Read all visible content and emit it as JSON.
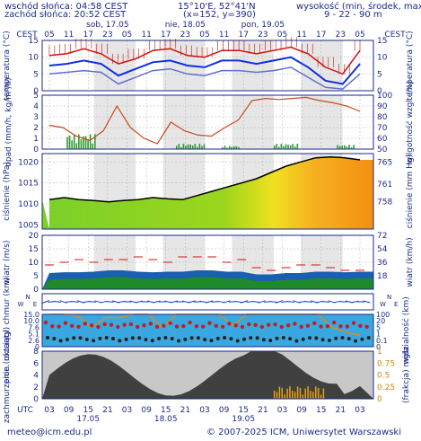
{
  "header": {
    "sunrise": "wschód słońca: 04:58 CEST",
    "sunset": "zachód słońca: 20:52 CEST",
    "coords": "15°10'E, 52°41'N",
    "grid": "(x=152, y=390)",
    "height_label": "wysokość (min, środek, max)",
    "height_values": "9 - 22 - 90 m"
  },
  "timeline": {
    "tz_left": "CEST",
    "tz_right": "CEST",
    "tz_bottom": "UTC",
    "top_hours": [
      "05",
      "11",
      "17",
      "23",
      "05",
      "11",
      "17",
      "23",
      "05",
      "11",
      "17",
      "23",
      "05",
      "11",
      "17",
      "23",
      "05"
    ],
    "top_days": [
      "sob, 17.05",
      "nie, 18.05",
      "pon, 19.05"
    ],
    "bottom_hours": [
      "03",
      "09",
      "15",
      "21",
      "03",
      "09",
      "15",
      "21",
      "03",
      "09",
      "15",
      "21",
      "03",
      "09",
      "15",
      "21",
      "03"
    ],
    "bottom_days": [
      "17.05",
      "18.05",
      "19.05"
    ]
  },
  "footer": {
    "email": "meteo@icm.edu.pl",
    "copyright": "© 2007-2025 ICM, Uniwersytet Warszawski"
  },
  "chart_data": [
    {
      "type": "line",
      "panel": "temperature",
      "ylabel_left": "temperatura (°C)",
      "ylabel_right": "temperatura (°C)",
      "ylim": [
        0,
        15
      ],
      "yticks": [
        0,
        5,
        10,
        15
      ],
      "x_hours_from_first_tick": [
        0,
        6,
        12,
        18,
        24,
        30,
        36,
        42,
        48,
        54,
        60,
        66,
        72,
        78,
        84,
        90,
        96,
        102,
        108
      ],
      "series": [
        {
          "name": "max",
          "color": "#d01010",
          "values": [
            10.5,
            11,
            12.5,
            11,
            8,
            9.5,
            12,
            12.5,
            10.5,
            10,
            12,
            12,
            11,
            12,
            13,
            11,
            7,
            5,
            12
          ]
        },
        {
          "name": "mean",
          "color": "#1030e0",
          "values": [
            7.5,
            8,
            9,
            8,
            4.5,
            6.5,
            8.5,
            9,
            7.5,
            7,
            9,
            9,
            8,
            9,
            10,
            7,
            3,
            2,
            8
          ]
        },
        {
          "name": "min",
          "color": "#6070d0",
          "values": [
            5,
            5.5,
            6,
            5.5,
            2,
            4,
            6,
            6.5,
            5,
            4.5,
            6,
            6,
            5.5,
            6,
            7,
            4,
            1,
            0.5,
            5
          ]
        }
      ]
    },
    {
      "type": "line",
      "panel": "precipitation-humidity",
      "ylabel_left": "opad (mm/h, kg/m²/h)",
      "ylabel_right": "wilgotność wzgl. (%)",
      "ylim_left": [
        0,
        5
      ],
      "yticks_left": [
        0,
        1,
        2,
        3,
        4,
        5
      ],
      "ylim_right": [
        50,
        100
      ],
      "yticks_right": [
        50,
        60,
        70,
        80,
        90,
        100
      ],
      "humidity": [
        72,
        70,
        62,
        58,
        67,
        90,
        70,
        60,
        55,
        75,
        67,
        63,
        62,
        70,
        77,
        95,
        97,
        96,
        97,
        98,
        95,
        93,
        90,
        85
      ],
      "precipitation_events": [
        {
          "start": 6,
          "end": 16,
          "max": 1.4
        },
        {
          "start": 44,
          "end": 54,
          "max": 0.5
        },
        {
          "start": 60,
          "end": 66,
          "max": 0.3
        },
        {
          "start": 78,
          "end": 86,
          "max": 0.5
        },
        {
          "start": 100,
          "end": 106,
          "max": 0.4
        }
      ]
    },
    {
      "type": "line",
      "panel": "pressure",
      "ylabel_left": "ciśnienie (hPa)",
      "ylabel_right": "ciśnienie (mm Hg)",
      "ylim": [
        1004,
        1022
      ],
      "yticks_left": [
        1005,
        1010,
        1015,
        1020
      ],
      "yticks_right": [
        "758",
        "761",
        "765"
      ],
      "values": [
        1011,
        1011.5,
        1011,
        1010.8,
        1010.5,
        1010.8,
        1011,
        1011.5,
        1011.2,
        1011,
        1012,
        1013,
        1014,
        1015,
        1016,
        1017.5,
        1019,
        1020,
        1021,
        1021.2,
        1021,
        1020.5
      ]
    },
    {
      "type": "area",
      "panel": "wind",
      "ylabel_left": "wiatr (m/s)",
      "ylabel_right": "wiatr (km/h)",
      "ylim": [
        0,
        20
      ],
      "yticks_left": [
        0,
        5,
        10,
        15,
        20
      ],
      "yticks_right": [
        "18",
        "36",
        "54",
        "72"
      ],
      "speed": [
        3.5,
        3.8,
        3.8,
        4,
        4.5,
        4.5,
        4,
        3.8,
        4,
        4,
        4.5,
        4.5,
        4,
        4,
        3,
        3,
        3.5,
        3.5,
        4,
        4,
        3.8,
        4
      ],
      "gusts": [
        9,
        10,
        11,
        10,
        11,
        11,
        12,
        11,
        10,
        12,
        12,
        12,
        10,
        11,
        8,
        7,
        8,
        9,
        9,
        8,
        7,
        7
      ]
    },
    {
      "type": "scatter",
      "panel": "wind-direction",
      "label": "wind direction arrows"
    },
    {
      "type": "scatter",
      "panel": "cloud-base-visibility",
      "ylabel_left": "pion. rozciągł. chmur (km)",
      "ylabel_right": "widzialność (km)",
      "ylim_left": [
        0,
        15
      ],
      "yticks_left": [
        "0",
        "2.6",
        "5.1",
        "7.6",
        "10.0",
        "15.0"
      ],
      "yticks_right": [
        "0",
        "0.1",
        "1",
        "5",
        "20",
        "100"
      ],
      "visibility_curve": [
        20,
        20,
        19,
        12,
        18,
        18,
        20,
        20,
        12,
        20,
        20,
        20,
        20,
        13,
        20,
        20,
        20,
        20,
        20,
        20,
        12,
        9,
        7
      ]
    },
    {
      "type": "area",
      "panel": "cloud-cover-fog",
      "ylabel_left": "zachmurzenie (oktanty)",
      "ylabel_right": "(frakcja) mgła",
      "ylim_left": [
        0,
        8
      ],
      "yticks_left": [
        0,
        2,
        4,
        6,
        8
      ],
      "yticks_right": [
        "0",
        "0.25",
        "0.5",
        "0.75",
        "1"
      ]
    }
  ]
}
